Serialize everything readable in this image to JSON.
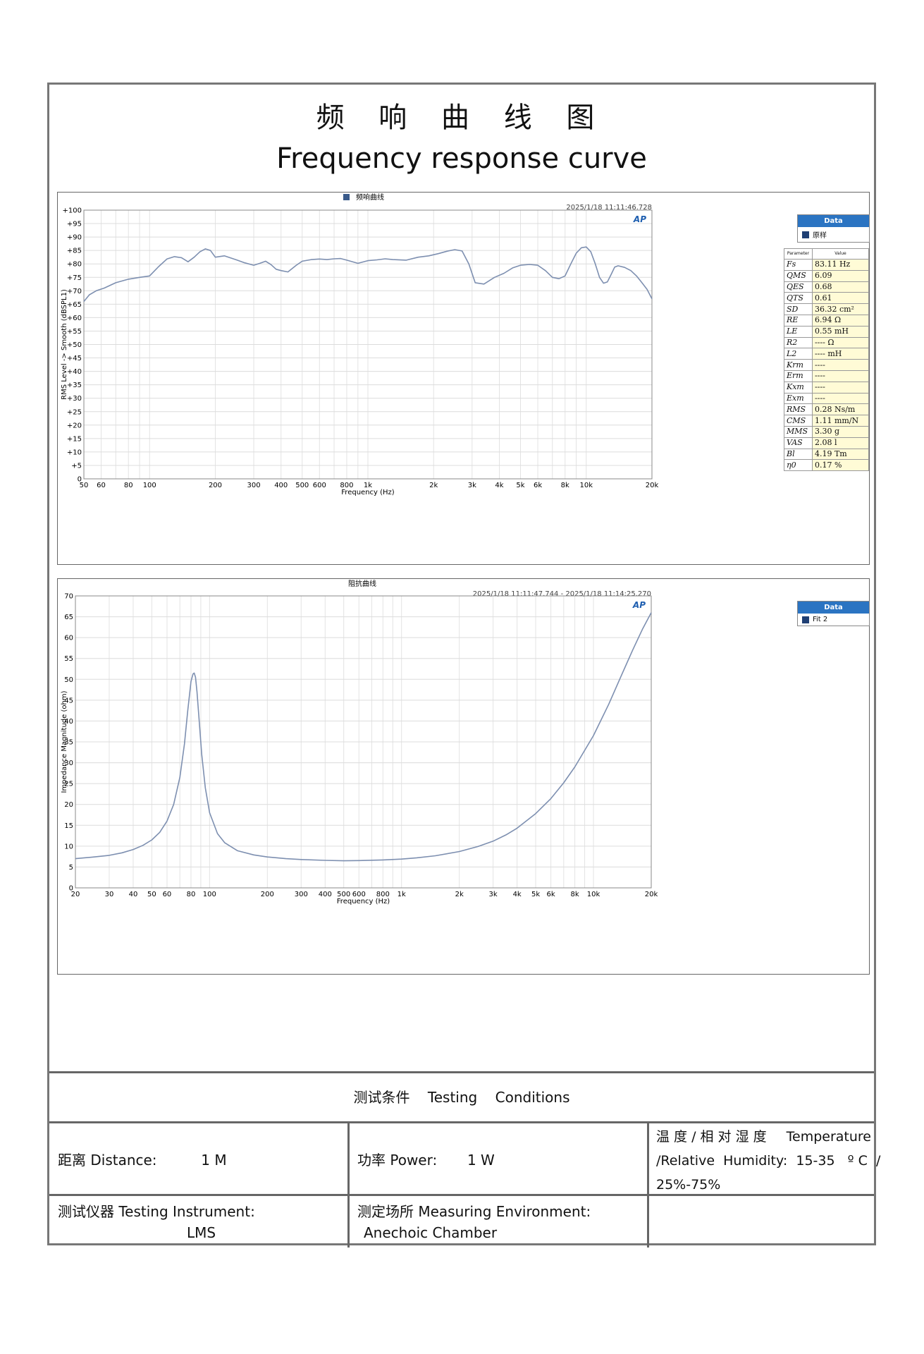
{
  "header": {
    "title_cn": "频 响 曲 线 图",
    "title_en": "Frequency response curve"
  },
  "chart_data": [
    {
      "type": "line",
      "title": "频响曲线",
      "timestamp": "2025/1/18 11:11:46.728",
      "xlabel": "Frequency (Hz)",
      "ylabel": "RMS Level -> Smooth (dBSPL1)",
      "x_scale": "log",
      "xlim": [
        50,
        20000
      ],
      "ylim": [
        0,
        100
      ],
      "x_ticks": [
        50,
        60,
        80,
        100,
        200,
        300,
        400,
        500,
        600,
        800,
        1000,
        2000,
        3000,
        4000,
        5000,
        6000,
        8000,
        10000,
        20000
      ],
      "x_tick_labels": [
        "50",
        "60",
        "80",
        "100",
        "200",
        "300",
        "400",
        "500",
        "600",
        "800",
        "1k",
        "2k",
        "3k",
        "4k",
        "5k",
        "6k",
        "8k",
        "10k",
        "20k"
      ],
      "y_ticks": [
        0,
        5,
        10,
        15,
        20,
        25,
        30,
        35,
        40,
        45,
        50,
        55,
        60,
        65,
        70,
        75,
        80,
        85,
        90,
        95,
        100
      ],
      "y_tick_labels": [
        "0",
        "+5",
        "+10",
        "+15",
        "+20",
        "+25",
        "+30",
        "+35",
        "+40",
        "+45",
        "+50",
        "+55",
        "+60",
        "+65",
        "+70",
        "+75",
        "+80",
        "+85",
        "+90",
        "+95",
        "+100"
      ],
      "grid": true,
      "legend": {
        "title": "Data",
        "entries": [
          "原样"
        ],
        "position": "right"
      },
      "series": [
        {
          "name": "原样",
          "x": [
            50,
            53,
            57,
            62,
            70,
            80,
            90,
            100,
            110,
            120,
            130,
            140,
            150,
            160,
            170,
            180,
            190,
            200,
            220,
            250,
            270,
            300,
            320,
            340,
            360,
            380,
            400,
            430,
            470,
            500,
            550,
            600,
            650,
            700,
            750,
            800,
            900,
            1000,
            1100,
            1200,
            1300,
            1500,
            1700,
            1900,
            2100,
            2300,
            2500,
            2700,
            2900,
            3100,
            3400,
            3800,
            4200,
            4600,
            5000,
            5500,
            6000,
            6500,
            7000,
            7500,
            8000,
            8500,
            9000,
            9500,
            10000,
            10500,
            11000,
            11500,
            12000,
            12500,
            13000,
            13500,
            14000,
            15000,
            16000,
            17000,
            18000,
            19000,
            20000
          ],
          "y": [
            66,
            68.5,
            70,
            71,
            73,
            74.3,
            75,
            75.5,
            79,
            81.8,
            82.7,
            82.3,
            80.8,
            82.5,
            84.5,
            85.6,
            85,
            82.5,
            83,
            81.5,
            80.5,
            79.5,
            80.2,
            81,
            79.7,
            78,
            77.5,
            77,
            79.5,
            81,
            81.6,
            81.8,
            81.6,
            81.9,
            82,
            81.4,
            80.2,
            81.2,
            81.5,
            81.9,
            81.6,
            81.4,
            82.5,
            83,
            83.8,
            84.7,
            85.3,
            84.8,
            80,
            73,
            72.5,
            75,
            76.5,
            78.5,
            79.5,
            79.8,
            79.5,
            77.5,
            75,
            74.5,
            75.5,
            80,
            84,
            86,
            86.3,
            84.5,
            80,
            75,
            72.8,
            73.3,
            76,
            78.8,
            79.3,
            78.7,
            77.5,
            75.5,
            73,
            70.5,
            67
          ]
        }
      ],
      "parameters": {
        "header": [
          "Parameter",
          "Value"
        ],
        "rows": [
          {
            "name": "Fs",
            "value": "83.11 Hz"
          },
          {
            "name": "QMS",
            "value": "6.09"
          },
          {
            "name": "QES",
            "value": "0.68"
          },
          {
            "name": "QTS",
            "value": "0.61"
          },
          {
            "name": "SD",
            "value": "36.32 cm²"
          },
          {
            "name": "RE",
            "value": "6.94 Ω"
          },
          {
            "name": "LE",
            "value": "0.55 mH"
          },
          {
            "name": "R2",
            "value": "---- Ω"
          },
          {
            "name": "L2",
            "value": "---- mH"
          },
          {
            "name": "Krm",
            "value": "----"
          },
          {
            "name": "Erm",
            "value": "----"
          },
          {
            "name": "Kxm",
            "value": "----"
          },
          {
            "name": "Exm",
            "value": "----"
          },
          {
            "name": "RMS",
            "value": "0.28 Ns/m"
          },
          {
            "name": "CMS",
            "value": "1.11 mm/N"
          },
          {
            "name": "MMS",
            "value": "3.30 g"
          },
          {
            "name": "VAS",
            "value": "2.08 l"
          },
          {
            "name": "Bl",
            "value": "4.19 Tm"
          },
          {
            "name": "η0",
            "value": "0.17 %"
          }
        ]
      }
    },
    {
      "type": "line",
      "title": "阻抗曲线",
      "timestamp": "2025/1/18 11:11:47.744 - 2025/1/18 11:14:25.270",
      "xlabel": "Frequency (Hz)",
      "ylabel": "Impedance Magnitude (ohm)",
      "x_scale": "log",
      "xlim": [
        20,
        20000
      ],
      "ylim": [
        0,
        70
      ],
      "x_ticks": [
        20,
        30,
        40,
        50,
        60,
        80,
        100,
        200,
        300,
        400,
        500,
        600,
        800,
        1000,
        2000,
        3000,
        4000,
        5000,
        6000,
        8000,
        10000,
        20000
      ],
      "x_tick_labels": [
        "20",
        "30",
        "40",
        "50",
        "60",
        "80",
        "100",
        "200",
        "300",
        "400",
        "500",
        "600",
        "800",
        "1k",
        "2k",
        "3k",
        "4k",
        "5k",
        "6k",
        "8k",
        "10k",
        "20k"
      ],
      "y_ticks": [
        0,
        5,
        10,
        15,
        20,
        25,
        30,
        35,
        40,
        45,
        50,
        55,
        60,
        65,
        70
      ],
      "y_tick_labels": [
        "0",
        "5",
        "10",
        "15",
        "20",
        "25",
        "30",
        "35",
        "40",
        "45",
        "50",
        "55",
        "60",
        "65",
        "70"
      ],
      "grid": true,
      "legend": {
        "title": "Data",
        "entries": [
          "Fit 2"
        ],
        "position": "right"
      },
      "series": [
        {
          "name": "Fit 2",
          "x": [
            20,
            25,
            30,
            35,
            40,
            45,
            50,
            55,
            60,
            65,
            70,
            74,
            77,
            80,
            82,
            83.1,
            84.5,
            86,
            88,
            91,
            95,
            100,
            110,
            120,
            140,
            170,
            200,
            250,
            300,
            400,
            500,
            600,
            800,
            1000,
            1200,
            1500,
            2000,
            2500,
            3000,
            3500,
            4000,
            5000,
            6000,
            7000,
            8000,
            10000,
            12000,
            14000,
            16000,
            18000,
            20000
          ],
          "y": [
            7,
            7.4,
            7.8,
            8.4,
            9.2,
            10.2,
            11.5,
            13.3,
            16,
            20,
            26.5,
            34.5,
            42.5,
            49.5,
            51.3,
            51.5,
            50.5,
            47,
            41,
            32,
            24,
            18,
            13,
            10.8,
            8.9,
            7.9,
            7.4,
            7,
            6.8,
            6.6,
            6.5,
            6.55,
            6.7,
            6.9,
            7.2,
            7.7,
            8.7,
            9.9,
            11.2,
            12.7,
            14.3,
            17.8,
            21.4,
            25.2,
            29,
            36.5,
            44,
            51,
            57,
            62,
            66
          ]
        }
      ]
    }
  ],
  "conditions": {
    "heading_cn": "测试条件",
    "heading_en_1": "Testing",
    "heading_en_2": "Conditions",
    "distance_label": "距离 Distance:",
    "distance_value": "1 M",
    "power_label": "功率 Power:",
    "power_value": "1 W",
    "temp_line1_cn": "温 度 / 相 对 湿 度",
    "temp_line1_en": "Temperature",
    "temp_line2": "/Relative  Humidity:  15-35   º C  /",
    "temp_line3": "25%-75%",
    "instrument_label": "测试仪器 Testing Instrument:",
    "instrument_value": "LMS",
    "environment_label": "测定场所 Measuring Environment:",
    "environment_value": "Anechoic Chamber"
  },
  "colors": {
    "curve": "#7d8fb0",
    "grid": "#dcdcdc",
    "legend_header": "#2b74c2",
    "swatch": "#1f3f74",
    "param_value_bg": "#fffbd6"
  }
}
